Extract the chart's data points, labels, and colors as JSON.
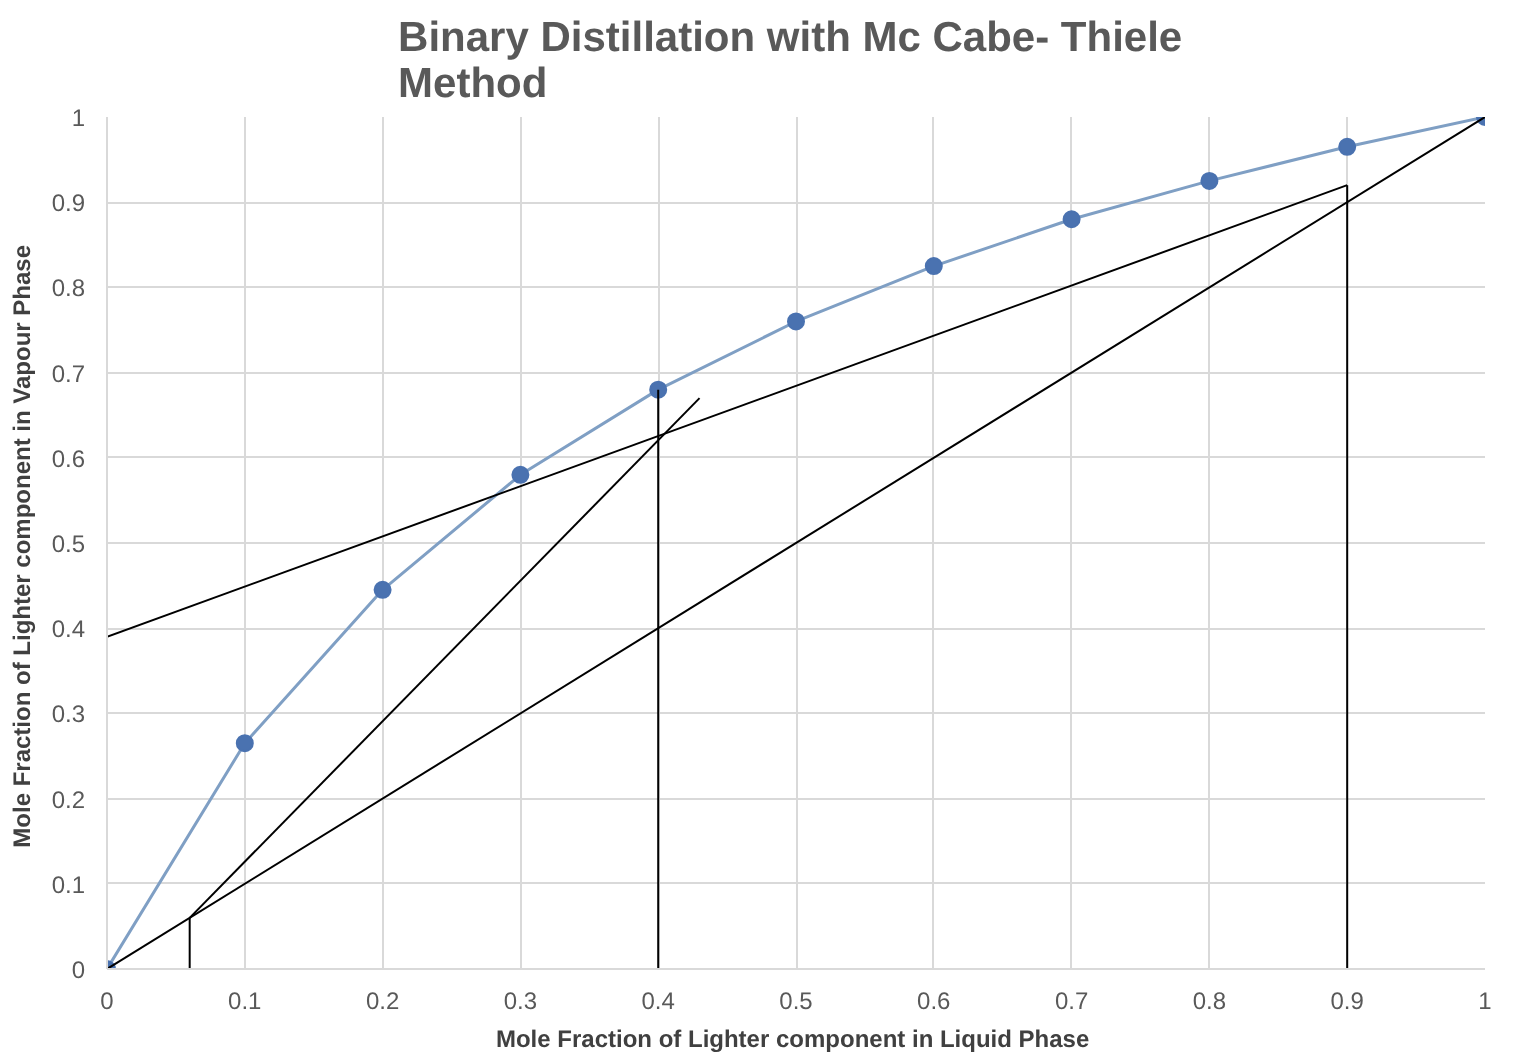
{
  "chart_data": {
    "type": "line",
    "title": "Binary Distillation  with Mc Cabe- Thiele\nMethod",
    "xlabel": "Mole Fraction of Lighter component  in Liquid Phase",
    "ylabel": "Mole Fraction of Lighter component  in Vapour Phase",
    "xlim": [
      0,
      1
    ],
    "ylim": [
      0,
      1
    ],
    "xticks": [
      0,
      0.1,
      0.2,
      0.3,
      0.4,
      0.5,
      0.6,
      0.7,
      0.8,
      0.9,
      1
    ],
    "yticks": [
      0,
      0.1,
      0.2,
      0.3,
      0.4,
      0.5,
      0.6,
      0.7,
      0.8,
      0.9,
      1
    ],
    "grid": true,
    "line_style": "solid",
    "series": [
      {
        "color": "#7f9fc4",
        "marker": "circle",
        "x": [
          0,
          0.1,
          0.2,
          0.3,
          0.4,
          0.5,
          0.6,
          0.7,
          0.8,
          0.9,
          1
        ],
        "values": [
          0,
          0.265,
          0.445,
          0.58,
          0.68,
          0.76,
          0.825,
          0.88,
          0.925,
          0.965,
          1
        ]
      },
      {
        "color": "#000000",
        "marker": "none",
        "x": [
          0,
          1
        ],
        "values": [
          0,
          1
        ]
      },
      {
        "color": "#000000",
        "marker": "none",
        "x": [
          0,
          0.9
        ],
        "values": [
          0.39,
          0.92
        ]
      },
      {
        "color": "#000000",
        "marker": "none",
        "x": [
          0.06,
          0.43
        ],
        "values": [
          0.06,
          0.67
        ]
      },
      {
        "color": "#000000",
        "marker": "none",
        "x": [
          0.06,
          0.06
        ],
        "values": [
          0,
          0.06
        ]
      },
      {
        "color": "#000000",
        "marker": "none",
        "x": [
          0.4,
          0.4
        ],
        "values": [
          0,
          0.68
        ]
      },
      {
        "color": "#000000",
        "marker": "none",
        "x": [
          0.9,
          0.9
        ],
        "values": [
          0,
          0.92
        ]
      }
    ]
  }
}
